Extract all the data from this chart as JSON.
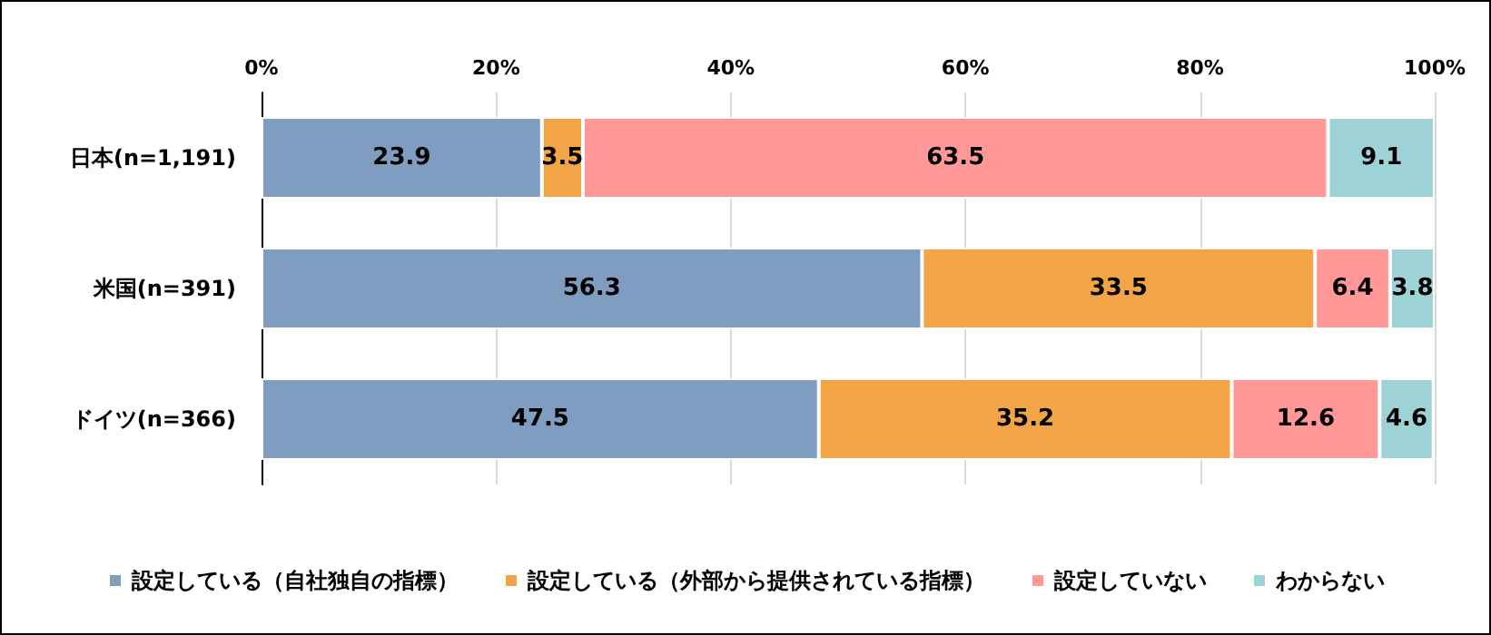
{
  "chart_data": {
    "type": "bar",
    "orientation": "horizontal",
    "stacked": true,
    "data_labels": true,
    "grid": "x",
    "legend": "bottom",
    "categories": [
      "日本(n=1,191)",
      "米国(n=391)",
      "ドイツ(n=366)"
    ],
    "xlim": [
      0,
      100
    ],
    "xticks": [
      {
        "value": 0,
        "label": "0%"
      },
      {
        "value": 20,
        "label": "20%"
      },
      {
        "value": 40,
        "label": "40%"
      },
      {
        "value": 60,
        "label": "60%"
      },
      {
        "value": 80,
        "label": "80%"
      },
      {
        "value": 100,
        "label": "100%"
      }
    ],
    "series": [
      {
        "name": "設定している（自社独自の指標）",
        "color": "#7f9cc1",
        "values": [
          23.9,
          56.3,
          47.5
        ]
      },
      {
        "name": "設定している（外部から提供されている指標）",
        "color": "#f2a446",
        "values": [
          3.5,
          33.5,
          35.2
        ]
      },
      {
        "name": "設定していない",
        "color": "#ff9896",
        "values": [
          63.5,
          6.4,
          12.6
        ]
      },
      {
        "name": "わからない",
        "color": "#9dd3d6",
        "values": [
          9.1,
          3.8,
          4.6
        ]
      }
    ]
  }
}
